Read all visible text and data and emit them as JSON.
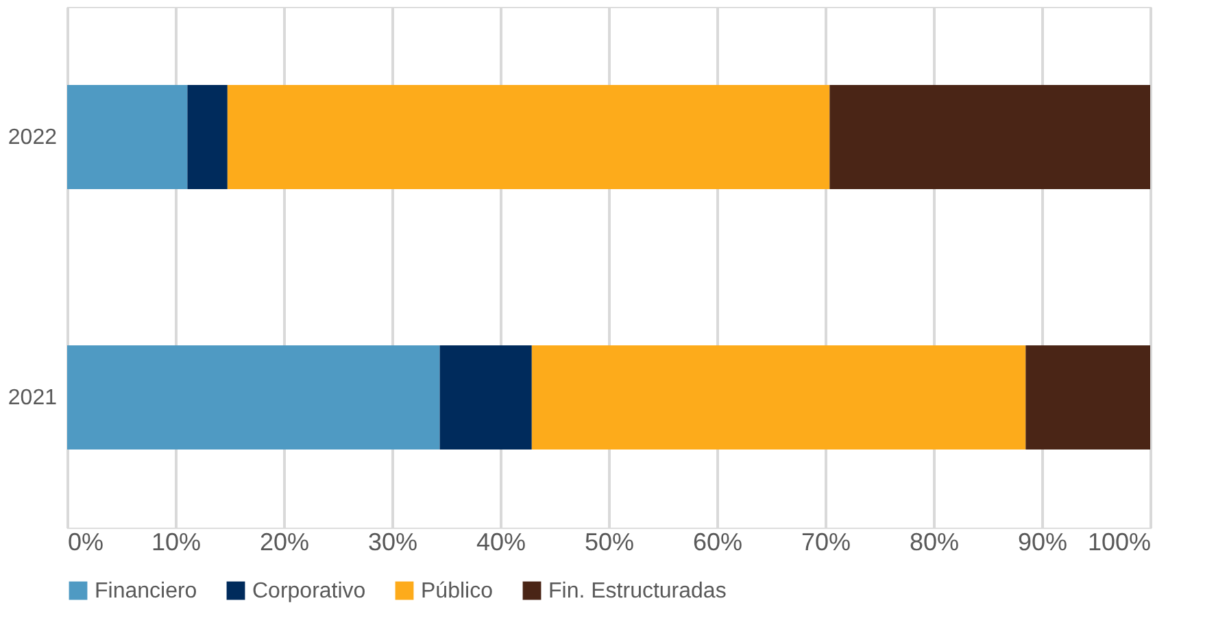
{
  "chart_data": {
    "type": "bar",
    "orientation": "horizontal",
    "stacked": true,
    "categories": [
      "2022",
      "2021"
    ],
    "series": [
      {
        "name": "Financiero",
        "color": "#4f9ac3",
        "values": [
          11.1,
          34.4
        ]
      },
      {
        "name": "Corporativo",
        "color": "#002b5c",
        "values": [
          3.7,
          8.5
        ]
      },
      {
        "name": "Público",
        "color": "#fdab1b",
        "values": [
          55.6,
          45.6
        ]
      },
      {
        "name": "Fin. Estructuradas",
        "color": "#4a2516",
        "values": [
          29.6,
          11.5
        ]
      }
    ],
    "xlim": [
      0,
      100
    ],
    "xticks": [
      {
        "value": 0,
        "label": "0%"
      },
      {
        "value": 10,
        "label": "10%"
      },
      {
        "value": 20,
        "label": "20%"
      },
      {
        "value": 30,
        "label": "30%"
      },
      {
        "value": 40,
        "label": "40%"
      },
      {
        "value": 50,
        "label": "50%"
      },
      {
        "value": 60,
        "label": "60%"
      },
      {
        "value": 70,
        "label": "70%"
      },
      {
        "value": 80,
        "label": "80%"
      },
      {
        "value": 90,
        "label": "90%"
      },
      {
        "value": 100,
        "label": "100%"
      }
    ],
    "grid": "x",
    "legend": "bottom"
  }
}
